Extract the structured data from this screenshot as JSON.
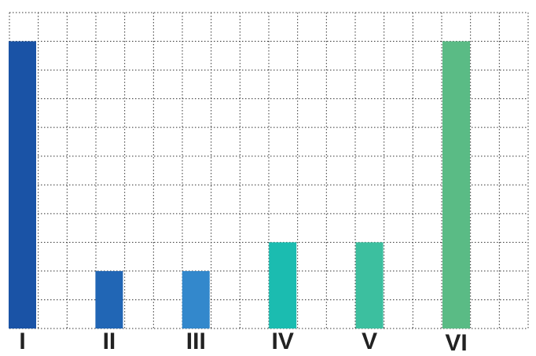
{
  "chart_data": {
    "type": "bar",
    "categories": [
      "I",
      "II",
      "III",
      "IV",
      "V",
      "VI"
    ],
    "values": [
      10,
      2,
      2,
      3,
      3,
      10
    ],
    "colors": [
      "#1a53a6",
      "#2166b5",
      "#3388cc",
      "#1bbcb0",
      "#3cbf9f",
      "#5abb85"
    ],
    "ylim": [
      0,
      11
    ],
    "yticks": [
      0,
      1,
      2,
      3,
      4,
      5,
      6,
      7,
      8,
      9,
      10,
      11
    ],
    "grid": true
  }
}
